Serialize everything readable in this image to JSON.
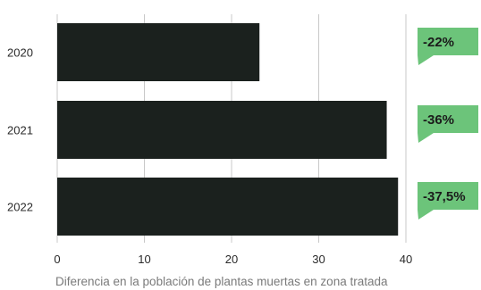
{
  "chart_data": {
    "type": "bar",
    "orientation": "horizontal",
    "categories": [
      "2020",
      "2021",
      "2022"
    ],
    "values": [
      23.2,
      37.8,
      39.1
    ],
    "annotations": [
      "-22%",
      "-36%",
      "-37,5%"
    ],
    "xlabel": "Diferencia en la población de plantas muertas en zona tratada",
    "xticks": [
      0,
      10,
      20,
      30,
      40
    ],
    "xlim": [
      0,
      40
    ],
    "grid": true,
    "colors": {
      "bar": "#1b211e",
      "annotation": "#6cc47a",
      "grid": "#c8c8c8"
    }
  }
}
